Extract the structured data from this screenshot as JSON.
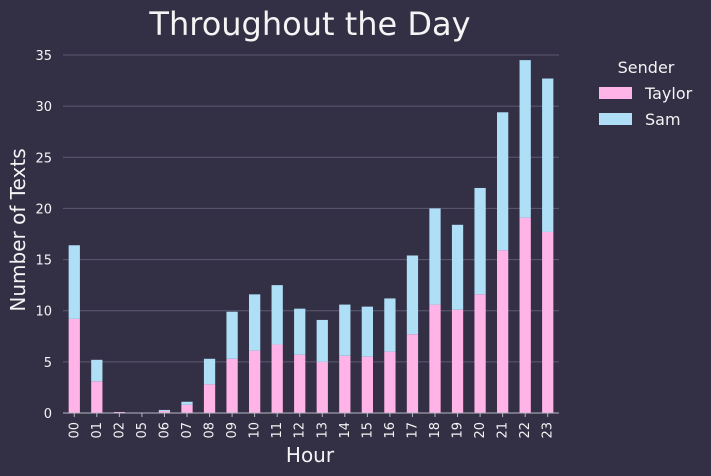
{
  "chart_data": {
    "type": "bar",
    "stacked": true,
    "title": "Throughout the Day",
    "xlabel": "Hour",
    "ylabel": "Number of Texts",
    "ylim": [
      0,
      35
    ],
    "yticks": [
      0,
      5,
      10,
      15,
      20,
      25,
      30,
      35
    ],
    "grid": "horizontal",
    "legend": {
      "title": "Sender",
      "placement": "right"
    },
    "categories": [
      "00",
      "01",
      "02",
      "05",
      "06",
      "07",
      "08",
      "09",
      "10",
      "11",
      "12",
      "13",
      "14",
      "15",
      "16",
      "17",
      "18",
      "19",
      "20",
      "21",
      "22",
      "23"
    ],
    "series": [
      {
        "name": "Taylor",
        "color": "#ffb3e6",
        "values": [
          9.2,
          3.1,
          0.1,
          0,
          0.2,
          0.8,
          2.8,
          5.3,
          6.1,
          6.7,
          5.7,
          5.0,
          5.6,
          5.5,
          6.0,
          7.7,
          10.6,
          10.1,
          11.6,
          15.9,
          19.1,
          17.7
        ]
      },
      {
        "name": "Sam",
        "color": "#aedff7",
        "values": [
          7.2,
          2.1,
          0,
          0,
          0.1,
          0.3,
          2.5,
          4.6,
          5.5,
          5.8,
          4.5,
          4.1,
          5.0,
          4.9,
          5.2,
          7.7,
          9.4,
          8.3,
          10.4,
          13.5,
          15.4,
          15.0
        ]
      }
    ]
  }
}
